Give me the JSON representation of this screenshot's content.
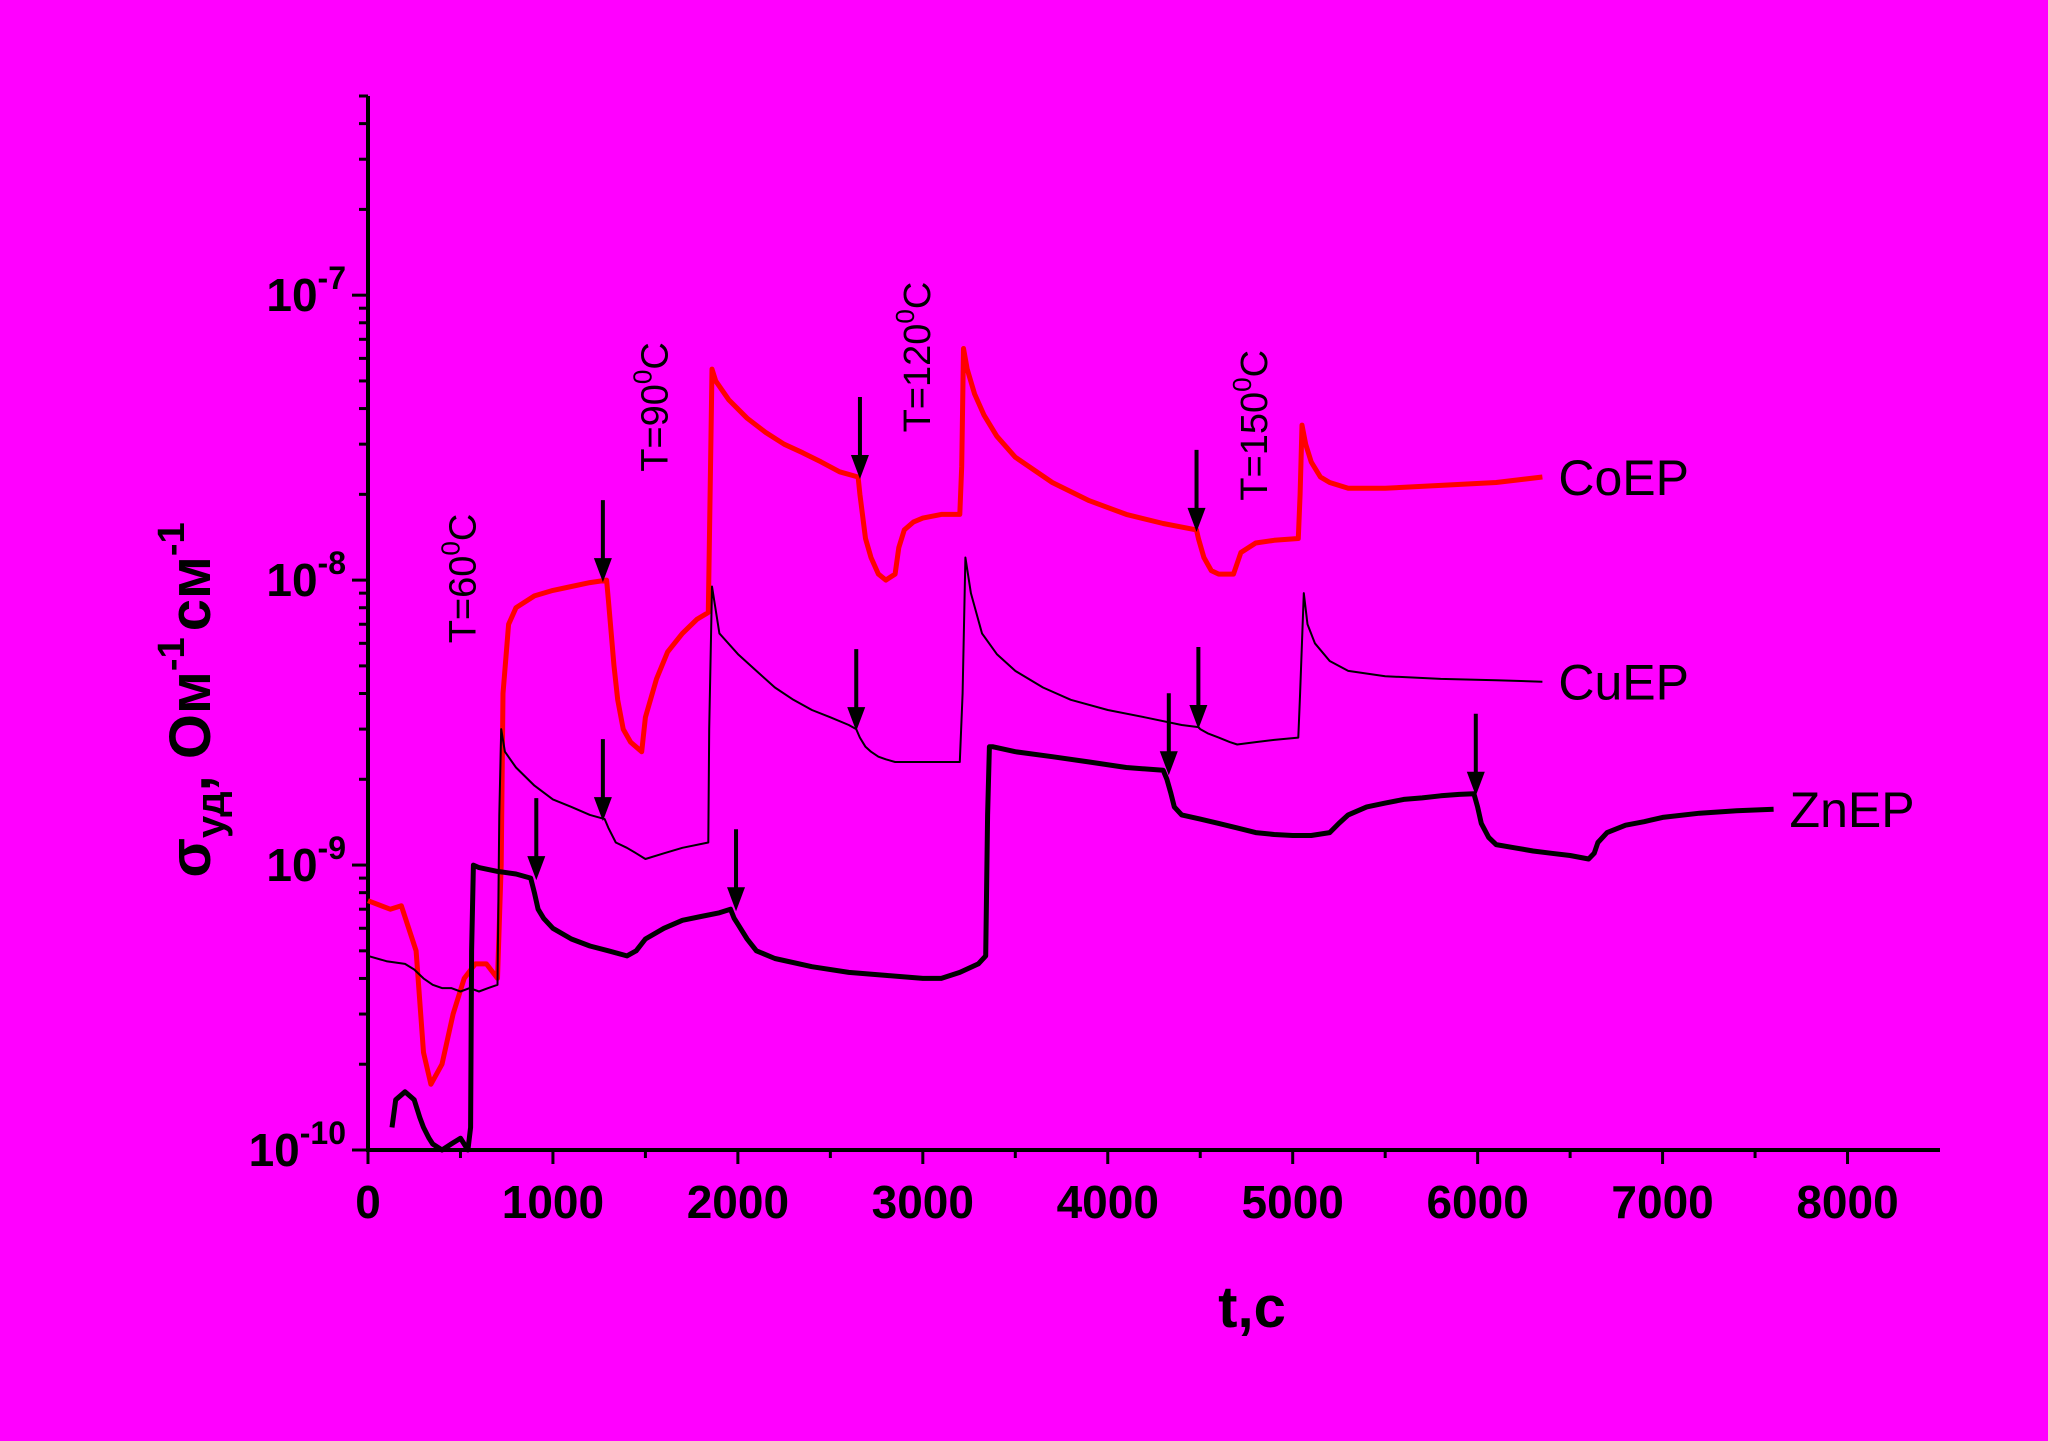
{
  "chart_data": {
    "type": "line",
    "xlabel": "t,c",
    "ylabel": {
      "symbol": "σ",
      "subscript": "уд",
      "rest": ", Ом",
      "exp1": "-1",
      "unit2": "см",
      "exp2": "-1"
    },
    "xlim": [
      0,
      8500
    ],
    "ylim": [
      1e-10,
      5e-07
    ],
    "yscale": "log",
    "xticks": [
      0,
      1000,
      2000,
      3000,
      4000,
      5000,
      6000,
      7000,
      8000
    ],
    "yticks": [
      {
        "value": 1e-10,
        "base": "10",
        "exp": "-10"
      },
      {
        "value": 1e-09,
        "base": "10",
        "exp": "-9"
      },
      {
        "value": 1e-08,
        "base": "10",
        "exp": "-8"
      },
      {
        "value": 1e-07,
        "base": "10",
        "exp": "-7"
      }
    ],
    "series": [
      {
        "name": "CoEP",
        "color": "#ff0000",
        "x": [
          0,
          120,
          180,
          260,
          300,
          340,
          400,
          460,
          520,
          580,
          640,
          700,
          720,
          730,
          760,
          800,
          900,
          1000,
          1100,
          1200,
          1290,
          1300,
          1330,
          1350,
          1380,
          1420,
          1480,
          1500,
          1560,
          1620,
          1700,
          1780,
          1840,
          1850,
          1860,
          1880,
          1950,
          2050,
          2150,
          2250,
          2350,
          2450,
          2550,
          2650,
          2660,
          2690,
          2720,
          2760,
          2800,
          2850,
          2870,
          2900,
          2950,
          3000,
          3100,
          3200,
          3210,
          3220,
          3240,
          3280,
          3330,
          3400,
          3500,
          3700,
          3900,
          4100,
          4300,
          4480,
          4490,
          4520,
          4560,
          4600,
          4680,
          4720,
          4800,
          4900,
          5030,
          5040,
          5050,
          5070,
          5100,
          5150,
          5200,
          5300,
          5500,
          5800,
          6100,
          6350
        ],
        "y": [
          7.5e-10,
          7e-10,
          7.2e-10,
          5e-10,
          2.2e-10,
          1.7e-10,
          2e-10,
          3e-10,
          4e-10,
          4.5e-10,
          4.5e-10,
          4e-10,
          1e-09,
          4e-09,
          7e-09,
          8e-09,
          8.8e-09,
          9.2e-09,
          9.5e-09,
          9.8e-09,
          1e-08,
          8.5e-09,
          5e-09,
          3.8e-09,
          3e-09,
          2.7e-09,
          2.5e-09,
          3.3e-09,
          4.5e-09,
          5.6e-09,
          6.5e-09,
          7.3e-09,
          7.7e-09,
          2e-08,
          5.5e-08,
          5e-08,
          4.3e-08,
          3.7e-08,
          3.3e-08,
          3e-08,
          2.8e-08,
          2.6e-08,
          2.4e-08,
          2.3e-08,
          2e-08,
          1.4e-08,
          1.2e-08,
          1.05e-08,
          1e-08,
          1.05e-08,
          1.3e-08,
          1.5e-08,
          1.6e-08,
          1.65e-08,
          1.7e-08,
          1.7e-08,
          2.5e-08,
          6.5e-08,
          5.5e-08,
          4.5e-08,
          3.8e-08,
          3.2e-08,
          2.7e-08,
          2.2e-08,
          1.9e-08,
          1.7e-08,
          1.58e-08,
          1.5e-08,
          1.4e-08,
          1.2e-08,
          1.08e-08,
          1.05e-08,
          1.05e-08,
          1.25e-08,
          1.35e-08,
          1.38e-08,
          1.4e-08,
          2e-08,
          3.5e-08,
          3e-08,
          2.6e-08,
          2.3e-08,
          2.2e-08,
          2.1e-08,
          2.1e-08,
          2.15e-08,
          2.2e-08,
          2.3e-08
        ]
      },
      {
        "name": "CuEP",
        "color": "#000000",
        "x": [
          0,
          100,
          200,
          250,
          300,
          350,
          400,
          450,
          500,
          550,
          600,
          650,
          700,
          710,
          720,
          740,
          800,
          900,
          1000,
          1100,
          1200,
          1280,
          1300,
          1340,
          1400,
          1450,
          1500,
          1600,
          1700,
          1840,
          1845,
          1860,
          1900,
          2000,
          2100,
          2200,
          2300,
          2400,
          2500,
          2600,
          2640,
          2660,
          2690,
          2720,
          2760,
          2800,
          2850,
          2900,
          3000,
          3100,
          3200,
          3215,
          3230,
          3260,
          3320,
          3400,
          3500,
          3650,
          3800,
          4000,
          4200,
          4400,
          4490,
          4500,
          4540,
          4600,
          4660,
          4700,
          4800,
          4900,
          5030,
          5040,
          5060,
          5080,
          5120,
          5200,
          5300,
          5500,
          5800,
          6100,
          6350
        ],
        "y": [
          4.8e-10,
          4.6e-10,
          4.5e-10,
          4.3e-10,
          4e-10,
          3.8e-10,
          3.7e-10,
          3.7e-10,
          3.6e-10,
          3.7e-10,
          3.6e-10,
          3.7e-10,
          3.8e-10,
          1.5e-09,
          3e-09,
          2.5e-09,
          2.2e-09,
          1.9e-09,
          1.7e-09,
          1.6e-09,
          1.5e-09,
          1.45e-09,
          1.35e-09,
          1.2e-09,
          1.15e-09,
          1.1e-09,
          1.05e-09,
          1.1e-09,
          1.15e-09,
          1.2e-09,
          3e-09,
          9.5e-09,
          6.5e-09,
          5.5e-09,
          4.8e-09,
          4.2e-09,
          3.8e-09,
          3.5e-09,
          3.3e-09,
          3.1e-09,
          3e-09,
          2.8e-09,
          2.6e-09,
          2.5e-09,
          2.4e-09,
          2.35e-09,
          2.3e-09,
          2.3e-09,
          2.3e-09,
          2.3e-09,
          2.3e-09,
          4e-09,
          1.2e-08,
          9e-09,
          6.5e-09,
          5.5e-09,
          4.8e-09,
          4.2e-09,
          3.8e-09,
          3.5e-09,
          3.3e-09,
          3.1e-09,
          3.05e-09,
          3e-09,
          2.9e-09,
          2.8e-09,
          2.7e-09,
          2.65e-09,
          2.7e-09,
          2.75e-09,
          2.8e-09,
          4e-09,
          9e-09,
          7e-09,
          6e-09,
          5.2e-09,
          4.8e-09,
          4.6e-09,
          4.5e-09,
          4.45e-09,
          4.4e-09
        ]
      },
      {
        "name": "ZnEP",
        "color": "#000000",
        "x": [
          130,
          150,
          200,
          250,
          280,
          300,
          330,
          350,
          400,
          450,
          500,
          540,
          555,
          560,
          570,
          600,
          700,
          800,
          880,
          900,
          920,
          950,
          1000,
          1100,
          1200,
          1300,
          1400,
          1450,
          1500,
          1600,
          1700,
          1800,
          1900,
          1960,
          1980,
          2000,
          2050,
          2100,
          2200,
          2400,
          2600,
          2800,
          3000,
          3100,
          3200,
          3300,
          3340,
          3350,
          3360,
          3380,
          3500,
          3700,
          3900,
          4100,
          4300,
          4320,
          4340,
          4360,
          4400,
          4500,
          4600,
          4700,
          4800,
          4900,
          5000,
          5100,
          5200,
          5250,
          5300,
          5400,
          5500,
          5600,
          5700,
          5800,
          5900,
          5980,
          6000,
          6020,
          6060,
          6100,
          6200,
          6300,
          6400,
          6500,
          6600,
          6630,
          6650,
          6700,
          6800,
          6900,
          7000,
          7200,
          7400,
          7600
        ],
        "y": [
          1.2e-10,
          1.5e-10,
          1.6e-10,
          1.5e-10,
          1.3e-10,
          1.2e-10,
          1.1e-10,
          1.05e-10,
          1e-10,
          1.05e-10,
          1.1e-10,
          1e-10,
          1.2e-10,
          5e-10,
          1e-09,
          9.8e-10,
          9.5e-10,
          9.3e-10,
          9e-10,
          8e-10,
          7e-10,
          6.5e-10,
          6e-10,
          5.5e-10,
          5.2e-10,
          5e-10,
          4.8e-10,
          5e-10,
          5.5e-10,
          6e-10,
          6.4e-10,
          6.6e-10,
          6.8e-10,
          7e-10,
          6.5e-10,
          6.2e-10,
          5.5e-10,
          5e-10,
          4.7e-10,
          4.4e-10,
          4.2e-10,
          4.1e-10,
          4e-10,
          4e-10,
          4.2e-10,
          4.5e-10,
          4.8e-10,
          1.5e-09,
          2.6e-09,
          2.6e-09,
          2.5e-09,
          2.4e-09,
          2.3e-09,
          2.2e-09,
          2.15e-09,
          2e-09,
          1.8e-09,
          1.6e-09,
          1.5e-09,
          1.45e-09,
          1.4e-09,
          1.35e-09,
          1.3e-09,
          1.28e-09,
          1.27e-09,
          1.27e-09,
          1.3e-09,
          1.4e-09,
          1.5e-09,
          1.6e-09,
          1.65e-09,
          1.7e-09,
          1.72e-09,
          1.75e-09,
          1.77e-09,
          1.78e-09,
          1.6e-09,
          1.4e-09,
          1.25e-09,
          1.18e-09,
          1.15e-09,
          1.12e-09,
          1.1e-09,
          1.08e-09,
          1.05e-09,
          1.1e-09,
          1.2e-09,
          1.3e-09,
          1.38e-09,
          1.42e-09,
          1.47e-09,
          1.52e-09,
          1.55e-09,
          1.57e-09
        ]
      }
    ],
    "annotations": [
      {
        "text": "T=60",
        "degree": "0",
        "unit": "C",
        "x": 580,
        "y": 6e-09
      },
      {
        "text": "T=90",
        "degree": "0",
        "unit": "C",
        "x": 1620,
        "y": 2.4e-08
      },
      {
        "text": "T=120",
        "degree": "0",
        "unit": "C",
        "x": 3040,
        "y": 3.3e-08
      },
      {
        "text": "T=150",
        "degree": "0",
        "unit": "C",
        "x": 4860,
        "y": 1.9e-08
      }
    ],
    "arrows": [
      {
        "x": 1270,
        "y": 1e-08
      },
      {
        "x": 2660,
        "y": 2.3e-08
      },
      {
        "x": 4480,
        "y": 1.5e-08
      },
      {
        "x": 1270,
        "y": 1.45e-09
      },
      {
        "x": 2640,
        "y": 3e-09
      },
      {
        "x": 4490,
        "y": 3.05e-09
      },
      {
        "x": 910,
        "y": 9e-10
      },
      {
        "x": 1990,
        "y": 7e-10
      },
      {
        "x": 4330,
        "y": 2.1e-09
      },
      {
        "x": 5990,
        "y": 1.78e-09
      }
    ]
  }
}
